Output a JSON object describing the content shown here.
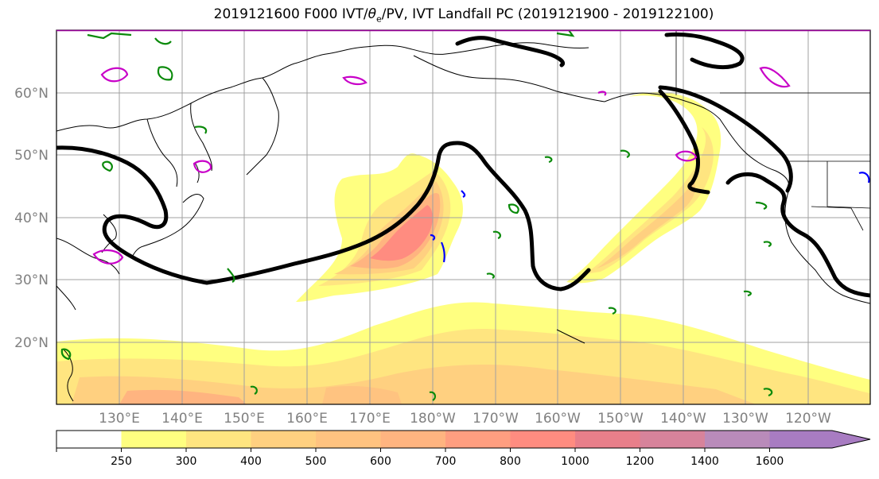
{
  "title": {
    "prefix": "2019121600 F000 IVT/",
    "theta": "θ",
    "theta_sub": "e",
    "suffix": "/PV, IVT Landfall PC (2019121900 - 2019122100)"
  },
  "lat_labels": [
    "60°N",
    "50°N",
    "40°N",
    "30°N",
    "20°N"
  ],
  "lon_labels": [
    "130°E",
    "140°E",
    "150°E",
    "160°E",
    "170°E",
    "180°W",
    "170°W",
    "160°W",
    "150°W",
    "140°W",
    "130°W",
    "120°W"
  ],
  "colorbar": {
    "ticks": [
      "250",
      "300",
      "400",
      "500",
      "600",
      "700",
      "800",
      "1000",
      "1200",
      "1400",
      "1600"
    ],
    "colors": [
      "#ffffff",
      "#ffff80",
      "#ffe580",
      "#ffd080",
      "#ffc380",
      "#ffb480",
      "#ff9e80",
      "#ff8c80",
      "#e87f8a",
      "#d7839b",
      "#b98bba",
      "#a87cc2"
    ],
    "extend": "max"
  },
  "colors": {
    "contour_black": "#000000",
    "contour_green": "#0a8a0a",
    "contour_magenta": "#c800c8",
    "contour_blue": "#0000ff",
    "grid": "#a0a0a0",
    "frame_top": "#9b009b"
  }
}
